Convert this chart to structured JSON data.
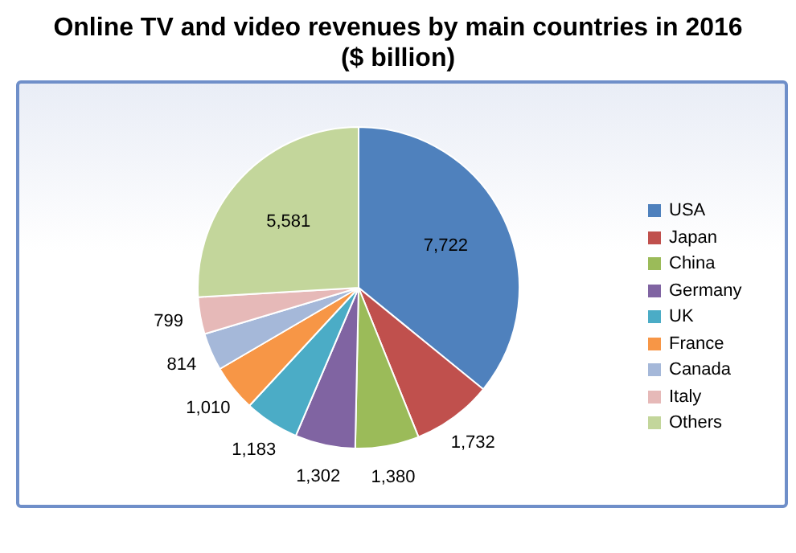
{
  "chart_data": {
    "type": "pie",
    "title": "Online TV and video revenues by main countries in 2016",
    "subtitle": "($ billion)",
    "categories": [
      "USA",
      "Japan",
      "China",
      "Germany",
      "UK",
      "France",
      "Canada",
      "Italy",
      "Others"
    ],
    "values": [
      7722,
      1732,
      1380,
      1302,
      1183,
      1010,
      814,
      799,
      5581
    ],
    "colors": [
      "#4f81bd",
      "#c0504d",
      "#9bbb59",
      "#8064a2",
      "#4bacc6",
      "#f79646",
      "#a5b8d9",
      "#e6b9b8",
      "#c3d69b"
    ],
    "value_labels": [
      "7,722",
      "1,732",
      "1,380",
      "1,302",
      "1,183",
      "1,010",
      "814",
      "799",
      "5,581"
    ],
    "legend": "right"
  }
}
